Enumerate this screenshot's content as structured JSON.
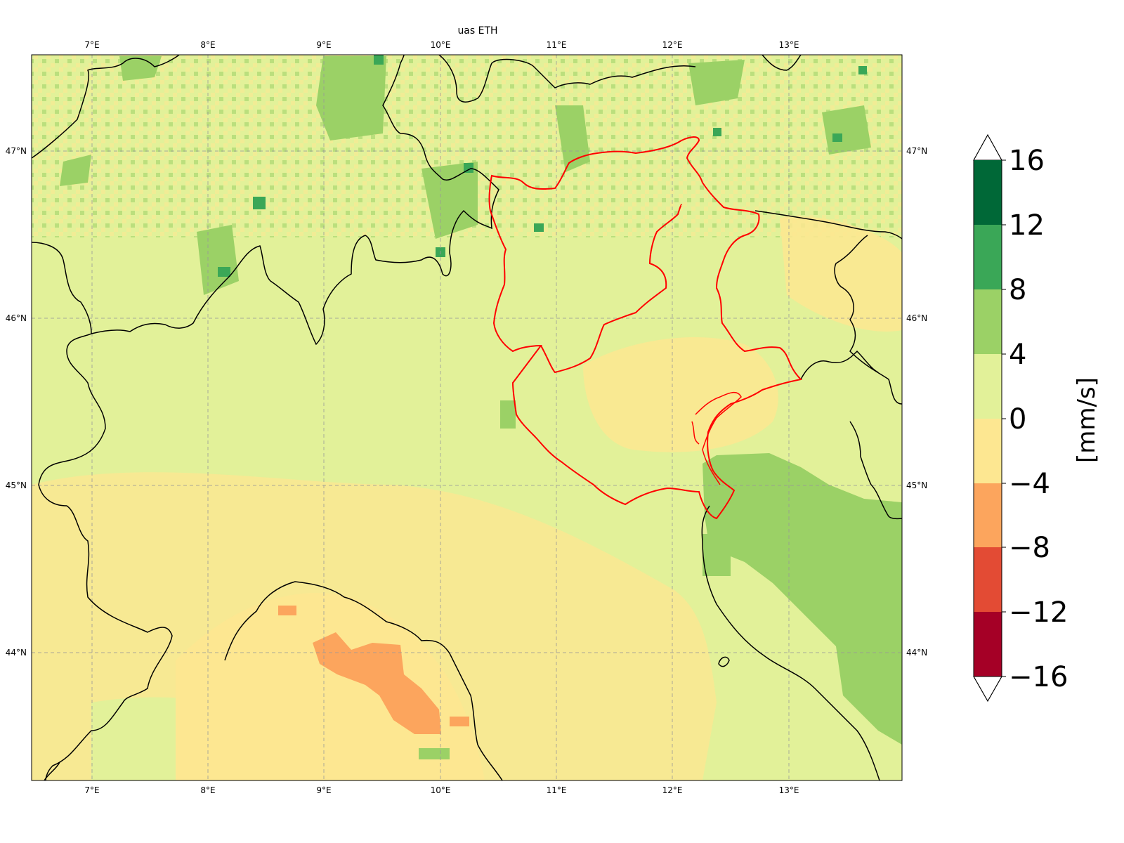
{
  "map": {
    "title": "uas ETH",
    "lon_range": [
      6.5,
      14.0
    ],
    "lat_range": [
      43.25,
      47.6
    ],
    "lon_ticks": [
      "7°E",
      "8°E",
      "9°E",
      "10°E",
      "11°E",
      "12°E",
      "13°E"
    ],
    "lon_tick_values": [
      7,
      8,
      9,
      10,
      11,
      12,
      13
    ],
    "lat_ticks": [
      "47°N",
      "46°N",
      "45°N",
      "44°N"
    ],
    "lat_tick_values": [
      47,
      46,
      45,
      44
    ],
    "gridlines": true,
    "boundary_color": "#000000",
    "highlight_region_color": "#ff0000",
    "dominant_value_class": "0 to 4",
    "features": [
      "Adriatic sea with positive values 4 to 8",
      "Apennines patch with values -8 to -4",
      "Alpine ridges with positive values 4 to 16"
    ]
  },
  "colorbar": {
    "label": "[mm/s]",
    "ticks": [
      "16",
      "12",
      "8",
      "4",
      "0",
      "−4",
      "−8",
      "−12",
      "−16"
    ],
    "tick_values": [
      16,
      12,
      8,
      4,
      0,
      -4,
      -8,
      -12,
      -16
    ],
    "extend": "both",
    "colors": [
      "#006837",
      "#3aa757",
      "#9bd166",
      "#e2f199",
      "#fde791",
      "#fca55d",
      "#e34b34",
      "#a50026"
    ],
    "over_color": "#ffffff",
    "under_color": "#ffffff"
  },
  "chart_data": {
    "type": "heatmap",
    "title": "uas ETH",
    "colorbar_label": "[mm/s]",
    "value_range": [
      -16,
      16
    ],
    "levels": [
      -16,
      -12,
      -8,
      -4,
      0,
      4,
      8,
      12,
      16
    ],
    "x_ticks": [
      "7°E",
      "8°E",
      "9°E",
      "10°E",
      "11°E",
      "12°E",
      "13°E"
    ],
    "y_ticks": [
      "47°N",
      "46°N",
      "45°N",
      "44°N"
    ]
  }
}
